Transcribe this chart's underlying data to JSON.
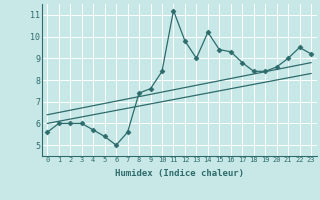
{
  "xlabel": "Humidex (Indice chaleur)",
  "bg_color": "#c8e8e8",
  "line_color": "#2e6b6b",
  "grid_color": "#ffffff",
  "xlim": [
    -0.5,
    23.5
  ],
  "ylim": [
    4.5,
    11.5
  ],
  "xticks": [
    0,
    1,
    2,
    3,
    4,
    5,
    6,
    7,
    8,
    9,
    10,
    11,
    12,
    13,
    14,
    15,
    16,
    17,
    18,
    19,
    20,
    21,
    22,
    23
  ],
  "yticks": [
    5,
    6,
    7,
    8,
    9,
    10,
    11
  ],
  "main_x": [
    0,
    1,
    2,
    3,
    4,
    5,
    6,
    7,
    8,
    9,
    10,
    11,
    12,
    13,
    14,
    15,
    16,
    17,
    18,
    19,
    20,
    21,
    22,
    23
  ],
  "main_y": [
    5.6,
    6.0,
    6.0,
    6.0,
    5.7,
    5.4,
    5.0,
    5.6,
    7.4,
    7.6,
    8.4,
    11.2,
    9.8,
    9.0,
    10.2,
    9.4,
    9.3,
    8.8,
    8.4,
    8.4,
    8.6,
    9.0,
    9.5,
    9.2
  ],
  "line1_x": [
    0,
    23
  ],
  "line1_y": [
    6.0,
    8.3
  ],
  "line2_x": [
    0,
    23
  ],
  "line2_y": [
    6.4,
    8.8
  ],
  "markersize": 2.5,
  "linewidth": 0.9,
  "tick_fontsize": 5,
  "label_fontsize": 6.5
}
